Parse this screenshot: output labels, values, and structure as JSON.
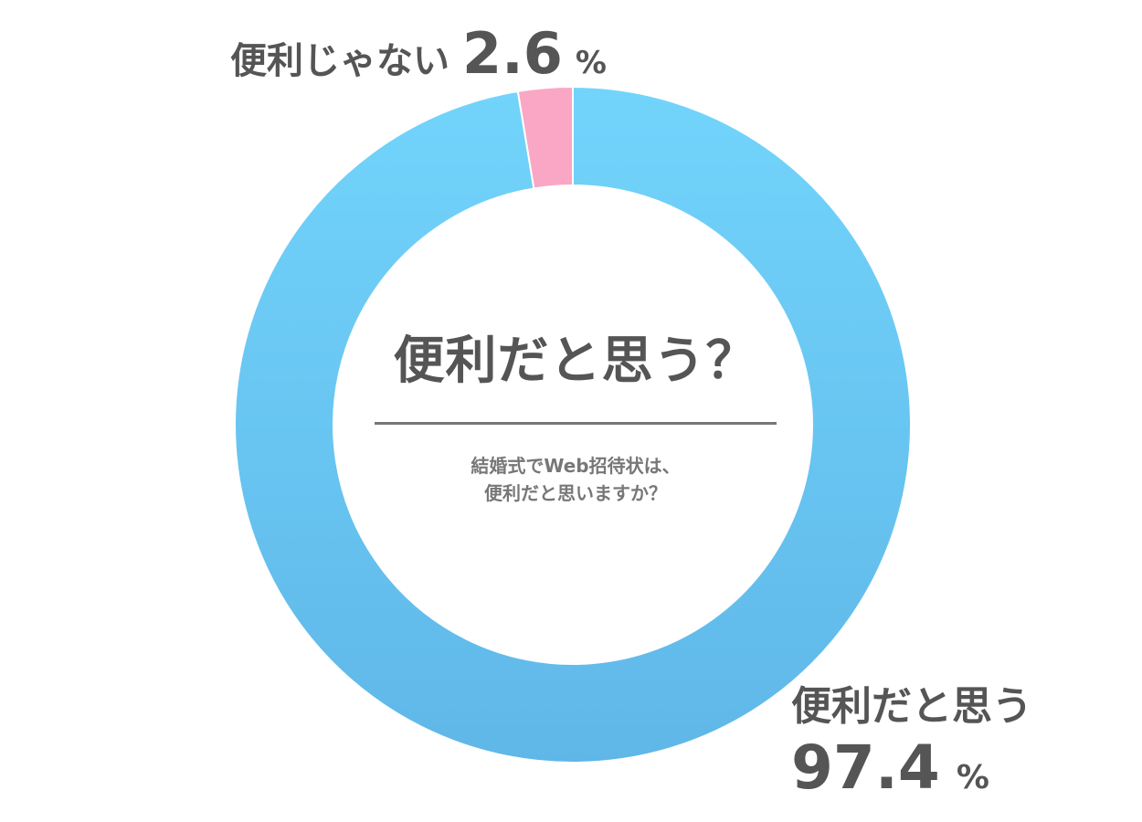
{
  "chart_data": {
    "type": "pie",
    "title": "便利だと思う？",
    "subtitle_lines": [
      "結婚式でWeb招待状は、",
      "便利だと思いますか？"
    ],
    "slices": [
      {
        "label": "便利だと思う",
        "value": 97.4,
        "value_text": "97.4",
        "color_top": "#72D4FB",
        "color_bottom": "#5FB7E8"
      },
      {
        "label": "便利じゃない",
        "value": 2.6,
        "value_text": "2.6",
        "color": "#F9A7C5"
      }
    ],
    "unit": "%",
    "start": "top",
    "direction": "clockwise",
    "legend": "none"
  }
}
